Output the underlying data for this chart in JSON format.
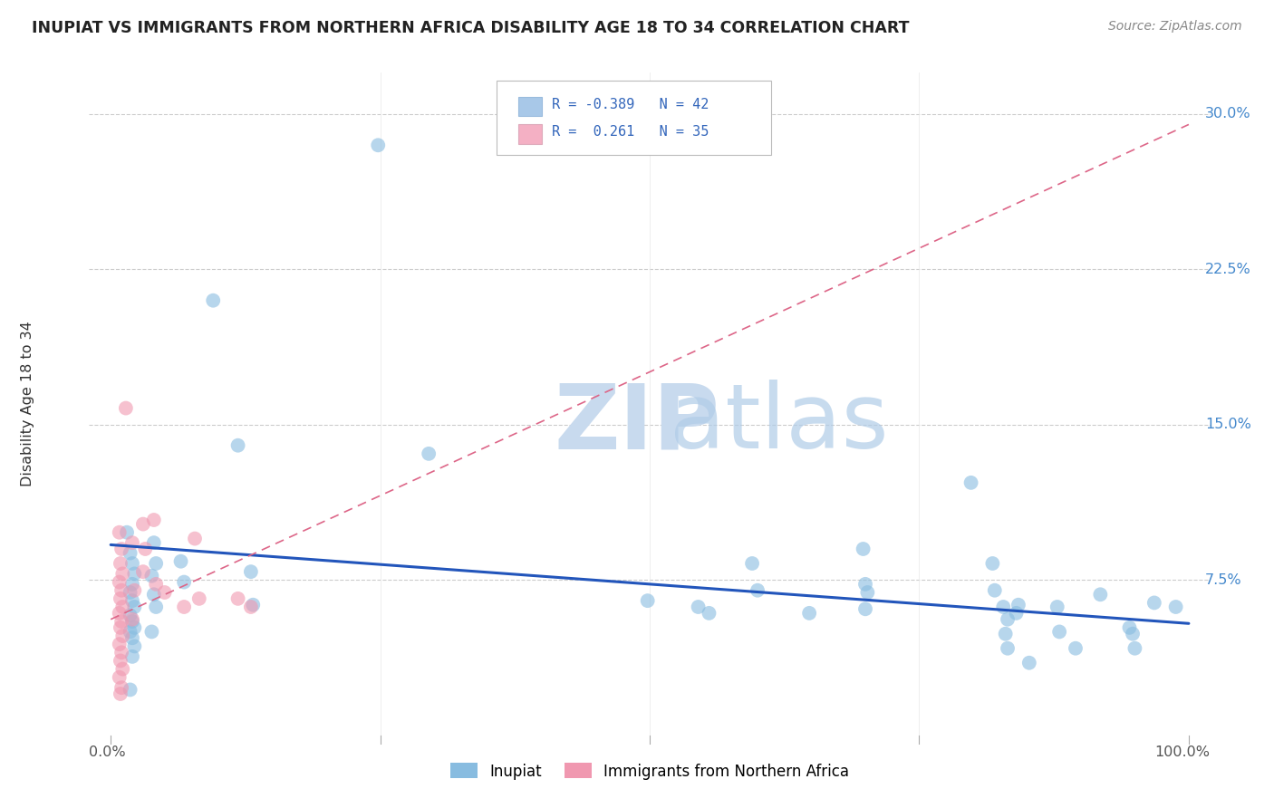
{
  "title": "INUPIAT VS IMMIGRANTS FROM NORTHERN AFRICA DISABILITY AGE 18 TO 34 CORRELATION CHART",
  "source": "Source: ZipAtlas.com",
  "ylabel": "Disability Age 18 to 34",
  "ytick_labels": [
    "7.5%",
    "15.0%",
    "22.5%",
    "30.0%"
  ],
  "ytick_values": [
    0.075,
    0.15,
    0.225,
    0.3
  ],
  "xlim": [
    -0.02,
    1.02
  ],
  "ylim": [
    0.0,
    0.32
  ],
  "legend_color1": "#a8c8e8",
  "legend_color2": "#f4b0c4",
  "blue_color": "#88bce0",
  "pink_color": "#f098b0",
  "trendline_blue_color": "#2255bb",
  "trendline_pink_color": "#dd6688",
  "blue_trendline": [
    [
      0.0,
      0.092
    ],
    [
      1.0,
      0.054
    ]
  ],
  "pink_trendline": [
    [
      0.0,
      0.056
    ],
    [
      1.0,
      0.295
    ]
  ],
  "blue_points": [
    [
      0.015,
      0.098
    ],
    [
      0.018,
      0.088
    ],
    [
      0.02,
      0.083
    ],
    [
      0.022,
      0.078
    ],
    [
      0.02,
      0.073
    ],
    [
      0.018,
      0.069
    ],
    [
      0.02,
      0.065
    ],
    [
      0.022,
      0.062
    ],
    [
      0.018,
      0.058
    ],
    [
      0.02,
      0.055
    ],
    [
      0.022,
      0.052
    ],
    [
      0.018,
      0.05
    ],
    [
      0.02,
      0.047
    ],
    [
      0.022,
      0.043
    ],
    [
      0.02,
      0.038
    ],
    [
      0.018,
      0.022
    ],
    [
      0.04,
      0.093
    ],
    [
      0.042,
      0.083
    ],
    [
      0.038,
      0.077
    ],
    [
      0.04,
      0.068
    ],
    [
      0.042,
      0.062
    ],
    [
      0.038,
      0.05
    ],
    [
      0.065,
      0.084
    ],
    [
      0.068,
      0.074
    ],
    [
      0.095,
      0.21
    ],
    [
      0.118,
      0.14
    ],
    [
      0.13,
      0.079
    ],
    [
      0.132,
      0.063
    ],
    [
      0.248,
      0.285
    ],
    [
      0.295,
      0.136
    ],
    [
      0.498,
      0.065
    ],
    [
      0.545,
      0.062
    ],
    [
      0.555,
      0.059
    ],
    [
      0.595,
      0.083
    ],
    [
      0.6,
      0.07
    ],
    [
      0.648,
      0.059
    ],
    [
      0.698,
      0.09
    ],
    [
      0.7,
      0.073
    ],
    [
      0.702,
      0.069
    ],
    [
      0.7,
      0.061
    ],
    [
      0.798,
      0.122
    ],
    [
      0.818,
      0.083
    ],
    [
      0.82,
      0.07
    ],
    [
      0.828,
      0.062
    ],
    [
      0.832,
      0.056
    ],
    [
      0.83,
      0.049
    ],
    [
      0.832,
      0.042
    ],
    [
      0.842,
      0.063
    ],
    [
      0.84,
      0.059
    ],
    [
      0.852,
      0.035
    ],
    [
      0.878,
      0.062
    ],
    [
      0.88,
      0.05
    ],
    [
      0.895,
      0.042
    ],
    [
      0.918,
      0.068
    ],
    [
      0.945,
      0.052
    ],
    [
      0.948,
      0.049
    ],
    [
      0.95,
      0.042
    ],
    [
      0.968,
      0.064
    ],
    [
      0.988,
      0.062
    ]
  ],
  "pink_points": [
    [
      0.008,
      0.098
    ],
    [
      0.01,
      0.09
    ],
    [
      0.009,
      0.083
    ],
    [
      0.011,
      0.078
    ],
    [
      0.008,
      0.074
    ],
    [
      0.01,
      0.07
    ],
    [
      0.009,
      0.066
    ],
    [
      0.011,
      0.062
    ],
    [
      0.008,
      0.059
    ],
    [
      0.01,
      0.055
    ],
    [
      0.009,
      0.052
    ],
    [
      0.011,
      0.048
    ],
    [
      0.008,
      0.044
    ],
    [
      0.01,
      0.04
    ],
    [
      0.009,
      0.036
    ],
    [
      0.011,
      0.032
    ],
    [
      0.008,
      0.028
    ],
    [
      0.01,
      0.023
    ],
    [
      0.009,
      0.02
    ],
    [
      0.014,
      0.158
    ],
    [
      0.02,
      0.093
    ],
    [
      0.022,
      0.07
    ],
    [
      0.02,
      0.056
    ],
    [
      0.03,
      0.102
    ],
    [
      0.032,
      0.09
    ],
    [
      0.03,
      0.079
    ],
    [
      0.04,
      0.104
    ],
    [
      0.042,
      0.073
    ],
    [
      0.05,
      0.069
    ],
    [
      0.068,
      0.062
    ],
    [
      0.078,
      0.095
    ],
    [
      0.082,
      0.066
    ],
    [
      0.118,
      0.066
    ],
    [
      0.13,
      0.062
    ]
  ]
}
